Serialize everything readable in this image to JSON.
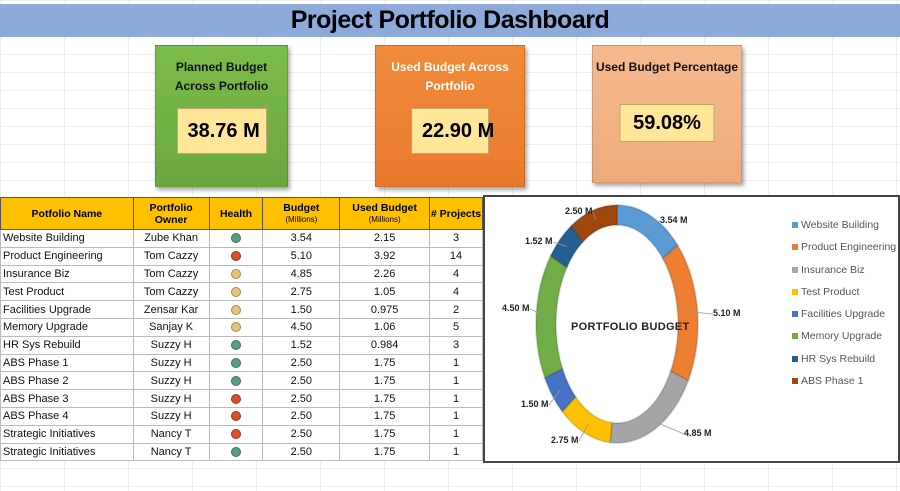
{
  "title": "Project Portfolio Dashboard",
  "kpis": [
    {
      "label": "Planned Budget Across Portfolio",
      "value": "38.76 M",
      "color": "#70ad47"
    },
    {
      "label": "Used Budget Across Portfolio",
      "value": "22.90 M",
      "color": "#ed7d31"
    },
    {
      "label": "Used Budget Percentage",
      "value": "59.08%",
      "color": "#f4b183"
    }
  ],
  "table": {
    "headers": [
      "Potfolio Name",
      "Portfolio Owner",
      "Health",
      "Budget",
      "Used Budget",
      "# Projects"
    ],
    "subheaders": {
      "budget": "(Millions)",
      "used": "(Millions)"
    },
    "health_colors": {
      "green": "#5a9e80",
      "red": "#d9502a",
      "amber": "#e8c37a"
    },
    "rows": [
      [
        "Website Building",
        "Zube Khan",
        "green",
        "3.54",
        "2.15",
        "3"
      ],
      [
        "Product Engineering",
        "Tom Cazzy",
        "red",
        "5.10",
        "3.92",
        "14"
      ],
      [
        "Insurance Biz",
        "Tom Cazzy",
        "amber",
        "4.85",
        "2.26",
        "4"
      ],
      [
        "Test Product",
        "Tom Cazzy",
        "amber",
        "2.75",
        "1.05",
        "4"
      ],
      [
        "Facilities Upgrade",
        "Zensar Kar",
        "amber",
        "1.50",
        "0.975",
        "2"
      ],
      [
        "Memory Upgrade",
        "Sanjay K",
        "amber",
        "4.50",
        "1.06",
        "5"
      ],
      [
        "HR Sys Rebuild",
        "Suzzy H",
        "green",
        "1.52",
        "0.984",
        "3"
      ],
      [
        "ABS Phase 1",
        "Suzzy H",
        "green",
        "2.50",
        "1.75",
        "1"
      ],
      [
        "ABS Phase 2",
        "Suzzy H",
        "green",
        "2.50",
        "1.75",
        "1"
      ],
      [
        "ABS Phase 3",
        "Suzzy H",
        "red",
        "2.50",
        "1.75",
        "1"
      ],
      [
        "ABS Phase 4",
        "Suzzy H",
        "red",
        "2.50",
        "1.75",
        "1"
      ],
      [
        "Strategic Initiatives",
        "Nancy T",
        "red",
        "2.50",
        "1.75",
        "1"
      ],
      [
        "Strategic Initiatives",
        "Nancy T",
        "green",
        "2.50",
        "1.75",
        "1"
      ]
    ]
  },
  "chart_data": {
    "type": "pie",
    "variant": "doughnut",
    "title": "PORTFOLIO BUDGET",
    "categories": [
      "Website Building",
      "Product Engineering",
      "Insurance Biz",
      "Test Product",
      "Facilities Upgrade",
      "Memory Upgrade",
      "HR Sys Rebuild",
      "ABS Phase 1"
    ],
    "values": [
      3.54,
      5.1,
      4.85,
      2.75,
      1.5,
      4.5,
      1.52,
      2.5
    ],
    "data_labels": [
      "3.54 M",
      "5.10 M",
      "4.85 M",
      "2.75 M",
      "1.50 M",
      "4.50 M",
      "1.52 M",
      "2.50 M"
    ],
    "colors": [
      "#5b9bd5",
      "#ed7d31",
      "#a5a5a5",
      "#ffc000",
      "#4472c4",
      "#70ad47",
      "#255e91",
      "#9e480e"
    ],
    "legend": "right"
  }
}
